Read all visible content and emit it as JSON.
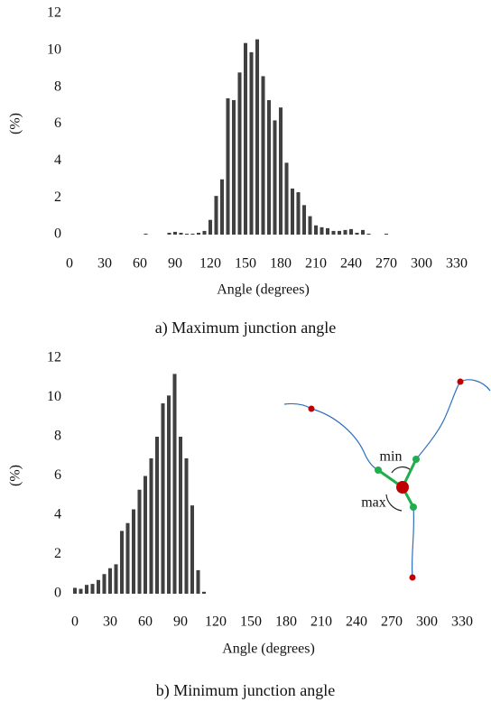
{
  "chart_data": [
    {
      "type": "bar",
      "caption": "a) Maximum junction angle",
      "x_label": "Angle (degrees)",
      "y_label": "(%)",
      "color": "#404040",
      "x": [
        60,
        65,
        70,
        75,
        80,
        85,
        90,
        95,
        100,
        105,
        110,
        115,
        120,
        125,
        130,
        135,
        140,
        145,
        150,
        155,
        160,
        165,
        170,
        175,
        180,
        185,
        190,
        195,
        200,
        205,
        210,
        215,
        220,
        225,
        230,
        235,
        240,
        245,
        250,
        255,
        260,
        265,
        270
      ],
      "values": [
        0,
        0.05,
        0,
        0,
        0,
        0.1,
        0.15,
        0.1,
        0.05,
        0.05,
        0.1,
        0.2,
        0.8,
        2.1,
        3,
        7.4,
        7.3,
        8.8,
        10.4,
        9.9,
        10.6,
        8.6,
        7.3,
        6.2,
        6.9,
        3.9,
        2.5,
        2.3,
        1.6,
        1,
        0.5,
        0.4,
        0.35,
        0.2,
        0.2,
        0.25,
        0.3,
        0.1,
        0.25,
        0.05,
        0,
        0,
        0.05
      ],
      "xlim": [
        -5,
        345
      ],
      "xticks": [
        0,
        30,
        60,
        90,
        120,
        150,
        180,
        210,
        240,
        270,
        300,
        330
      ],
      "ylim": [
        0,
        12
      ],
      "yticks": [
        0,
        2,
        4,
        6,
        8,
        10,
        12
      ]
    },
    {
      "type": "bar",
      "caption": "b) Minimum junction angle",
      "x_label": "Angle (degrees)",
      "y_label": "(%)",
      "color": "#404040",
      "x": [
        0,
        5,
        10,
        15,
        20,
        25,
        30,
        35,
        40,
        45,
        50,
        55,
        60,
        65,
        70,
        75,
        80,
        85,
        90,
        95,
        100,
        105,
        110
      ],
      "values": [
        0.3,
        0.25,
        0.45,
        0.5,
        0.7,
        1,
        1.3,
        1.5,
        3.2,
        3.6,
        4.3,
        5.3,
        6,
        6.9,
        8,
        9.7,
        10.1,
        11.2,
        8,
        6.9,
        4.5,
        1.2,
        0.1
      ],
      "xlim": [
        -5,
        345
      ],
      "xticks": [
        0,
        30,
        60,
        90,
        120,
        150,
        180,
        210,
        240,
        270,
        300,
        330
      ],
      "ylim": [
        0,
        12
      ],
      "yticks": [
        0,
        2,
        4,
        6,
        8,
        10,
        12
      ],
      "annotations": [
        "min",
        "max"
      ]
    }
  ]
}
